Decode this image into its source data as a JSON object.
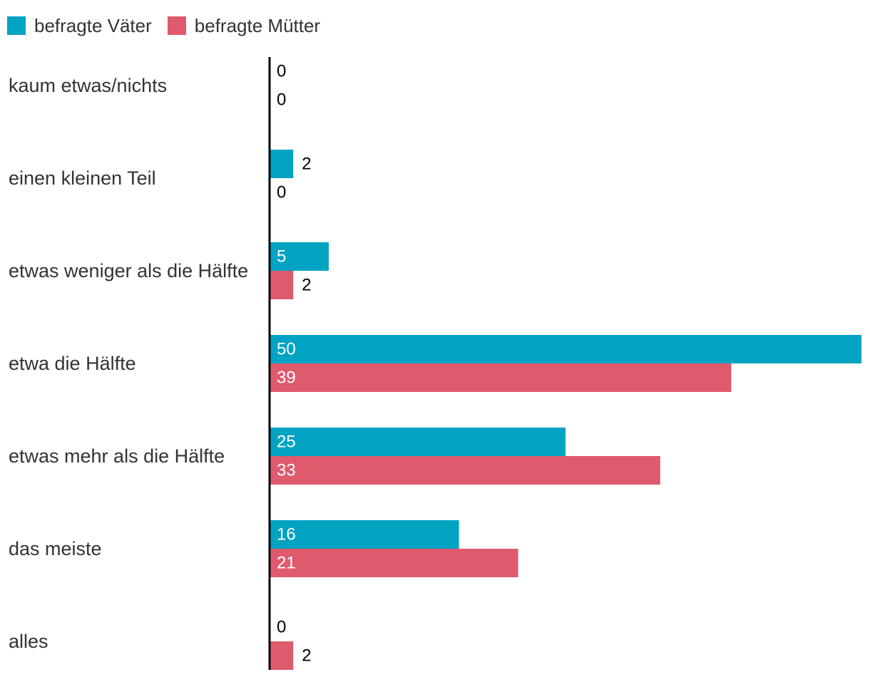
{
  "chart_data": {
    "type": "bar",
    "orientation": "horizontal",
    "categories": [
      "kaum etwas/nichts",
      "einen kleinen Teil",
      "etwas weniger als die Hälfte",
      "etwa die Hälfte",
      "etwas mehr als die Hälfte",
      "das meiste",
      "alles"
    ],
    "series": [
      {
        "name": "befragte Väter",
        "color": "#00a3c2",
        "values": [
          0,
          2,
          5,
          50,
          25,
          16,
          0
        ]
      },
      {
        "name": "befragte Mütter",
        "color": "#df5a6d",
        "values": [
          0,
          0,
          2,
          39,
          33,
          21,
          2
        ]
      }
    ],
    "xlim": [
      0,
      50
    ],
    "legend_position": "top-left",
    "grid": false,
    "title": "",
    "xlabel": "",
    "ylabel": ""
  }
}
